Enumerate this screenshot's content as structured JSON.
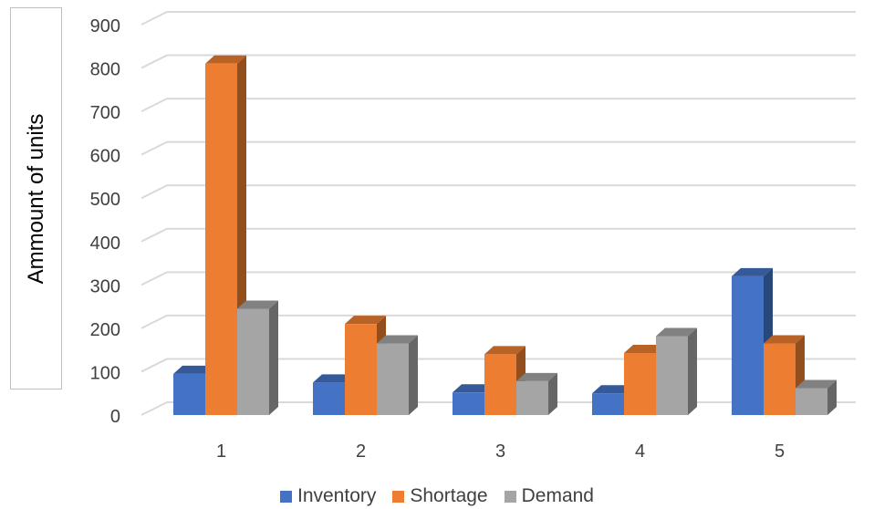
{
  "chart_data": {
    "type": "bar",
    "title": "",
    "xlabel": "",
    "ylabel": "Ammount of units",
    "categories": [
      "1",
      "2",
      "3",
      "4",
      "5"
    ],
    "series": [
      {
        "name": "Inventory",
        "color": "#4472c4",
        "values": [
          95,
          75,
          52,
          50,
          320
        ]
      },
      {
        "name": "Shortage",
        "color": "#ed7d31",
        "values": [
          810,
          210,
          140,
          143,
          165
        ]
      },
      {
        "name": "Demand",
        "color": "#a5a5a5",
        "values": [
          245,
          165,
          78,
          182,
          62
        ]
      }
    ],
    "ylim": [
      0,
      900
    ],
    "yticks": [
      "0",
      "100",
      "200",
      "300",
      "400",
      "500",
      "600",
      "700",
      "800",
      "900"
    ],
    "grid": true,
    "legend_position": "bottom",
    "style": "3d-clustered-column"
  }
}
